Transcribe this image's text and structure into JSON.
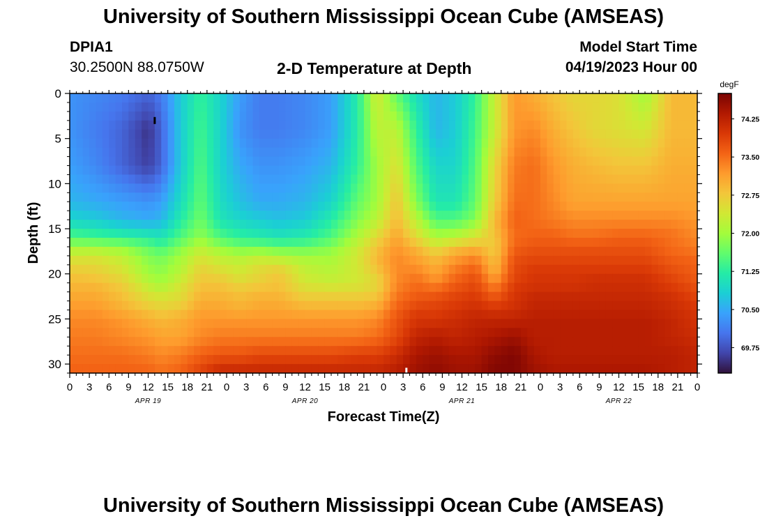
{
  "page": {
    "title_top": "University of Southern Mississippi Ocean Cube (AMSEAS)",
    "title_bottom": "University of Southern Mississippi Ocean Cube (AMSEAS)",
    "station_id": "DPIA1",
    "station_coords": "30.2500N  88.0750W",
    "plot_title": "2-D Temperature at Depth",
    "model_start_label": "Model Start Time",
    "model_start_value": "04/19/2023 Hour 00"
  },
  "colors": {
    "colormap": [
      "#30123b",
      "#4145ab",
      "#4675ed",
      "#39a2fc",
      "#1bcfd4",
      "#24eca6",
      "#61fc6c",
      "#a4fc3b",
      "#d1e834",
      "#f3c63a",
      "#fe9b2d",
      "#f36315",
      "#d93806",
      "#b11901",
      "#7a0403"
    ]
  },
  "chart_data": {
    "type": "heatmap",
    "title": "2-D Temperature at Depth",
    "xlabel": "Forecast Time(Z)",
    "ylabel": "Depth (ft)",
    "x_ticks": [
      "0",
      "3",
      "6",
      "9",
      "12",
      "15",
      "18",
      "21",
      "0",
      "3",
      "6",
      "9",
      "12",
      "15",
      "18",
      "21",
      "0",
      "3",
      "6",
      "9",
      "12",
      "15",
      "18",
      "21",
      "0",
      "3",
      "6",
      "9",
      "12",
      "15",
      "18",
      "21",
      "0"
    ],
    "x_range_hours": [
      0,
      96
    ],
    "date_labels": [
      {
        "label": "APR 19",
        "hour": 12
      },
      {
        "label": "APR 20",
        "hour": 36
      },
      {
        "label": "APR 21",
        "hour": 60
      },
      {
        "label": "APR 22",
        "hour": 84
      }
    ],
    "y_ticks": [
      0,
      5,
      10,
      15,
      20,
      25,
      30
    ],
    "y_range_ft": [
      0,
      31
    ],
    "colorbar": {
      "unit": "degF",
      "range": [
        69.25,
        74.75
      ],
      "tick_values": [
        69.75,
        70.5,
        71.25,
        72.0,
        72.75,
        73.5,
        74.25
      ],
      "tick_labels": [
        "69.75",
        "70.50",
        "71.25",
        "72.00",
        "72.75",
        "73.50",
        "74.25"
      ]
    },
    "depth_levels_ft": [
      0,
      4,
      8,
      12,
      14,
      16,
      17,
      18,
      19,
      20,
      21,
      22,
      23,
      24,
      25,
      27,
      29,
      31
    ],
    "time_hours": [
      0,
      4,
      8,
      12,
      14,
      17,
      20,
      23,
      26,
      29,
      32,
      36,
      40,
      44,
      47,
      50,
      53,
      56,
      59,
      62,
      65,
      68,
      71,
      74,
      77,
      80,
      84,
      88,
      92,
      96
    ],
    "temperature_degF": [
      [
        70.3,
        70.2,
        70.1,
        69.9,
        70.1,
        70.8,
        71.3,
        70.9,
        70.4,
        70.1,
        70.1,
        70.2,
        70.4,
        71.2,
        72.4,
        71.6,
        71.0,
        70.6,
        70.8,
        71.3,
        72.3,
        73.2,
        73.0,
        72.8,
        72.6,
        72.6,
        72.5,
        72.0,
        72.9,
        72.9
      ],
      [
        70.3,
        70.1,
        69.9,
        69.5,
        69.9,
        70.8,
        71.4,
        70.9,
        70.3,
        70.1,
        70.1,
        70.2,
        70.4,
        71.2,
        72.2,
        72.2,
        71.3,
        70.6,
        70.8,
        71.4,
        72.3,
        73.2,
        73.3,
        73.0,
        72.8,
        72.6,
        72.5,
        72.4,
        72.9,
        72.9
      ],
      [
        70.4,
        70.2,
        69.9,
        69.6,
        69.9,
        70.8,
        71.5,
        70.9,
        70.5,
        70.3,
        70.3,
        70.4,
        70.6,
        71.3,
        72.0,
        72.5,
        71.5,
        70.9,
        70.9,
        71.5,
        72.6,
        73.4,
        73.5,
        73.2,
        73.0,
        72.9,
        72.8,
        72.8,
        73.0,
        73.0
      ],
      [
        70.6,
        70.5,
        70.4,
        70.3,
        70.4,
        71.0,
        71.6,
        71.0,
        70.7,
        70.5,
        70.5,
        70.6,
        70.9,
        71.6,
        72.0,
        72.8,
        71.8,
        71.1,
        71.1,
        71.6,
        72.7,
        73.5,
        73.5,
        73.3,
        73.1,
        73.1,
        73.1,
        73.1,
        73.1,
        73.1
      ],
      [
        70.9,
        70.8,
        70.6,
        70.5,
        70.6,
        71.2,
        71.7,
        71.1,
        70.9,
        70.8,
        70.7,
        70.8,
        71.2,
        71.8,
        72.2,
        72.9,
        72.2,
        71.5,
        71.5,
        71.8,
        72.9,
        73.6,
        73.5,
        73.4,
        73.3,
        73.3,
        73.3,
        73.3,
        73.3,
        73.2
      ],
      [
        71.5,
        71.4,
        71.3,
        71.2,
        71.1,
        71.5,
        71.9,
        71.5,
        71.3,
        71.2,
        71.1,
        71.2,
        71.5,
        72.1,
        72.6,
        73.1,
        72.6,
        72.1,
        72.2,
        72.5,
        72.8,
        73.5,
        73.6,
        73.6,
        73.5,
        73.5,
        73.6,
        73.6,
        73.5,
        73.3
      ],
      [
        72.0,
        72.0,
        71.9,
        71.6,
        71.4,
        71.8,
        72.2,
        71.9,
        71.7,
        71.7,
        71.6,
        71.6,
        71.8,
        72.3,
        72.8,
        73.2,
        72.9,
        72.5,
        72.8,
        72.9,
        72.7,
        73.6,
        73.7,
        73.7,
        73.7,
        73.7,
        73.7,
        73.7,
        73.5,
        73.4
      ],
      [
        72.4,
        72.4,
        72.2,
        71.8,
        71.7,
        72.0,
        72.4,
        72.2,
        72.1,
        72.2,
        72.1,
        72.0,
        72.0,
        72.4,
        72.9,
        73.3,
        73.1,
        72.8,
        73.1,
        73.3,
        72.8,
        73.7,
        73.8,
        73.8,
        73.8,
        73.8,
        73.8,
        73.8,
        73.6,
        73.5
      ],
      [
        72.6,
        72.6,
        72.4,
        71.9,
        71.8,
        72.1,
        72.6,
        72.4,
        72.3,
        72.5,
        72.5,
        72.2,
        72.1,
        72.4,
        72.9,
        73.3,
        73.2,
        73.0,
        73.3,
        73.5,
        72.9,
        73.8,
        73.9,
        73.9,
        73.9,
        73.9,
        73.9,
        73.9,
        73.7,
        73.6
      ],
      [
        72.8,
        72.7,
        72.5,
        72.0,
        71.9,
        72.2,
        72.7,
        72.6,
        72.4,
        72.6,
        72.8,
        72.3,
        72.2,
        72.4,
        72.7,
        73.3,
        73.4,
        73.1,
        73.5,
        73.7,
        73.0,
        73.8,
        74.0,
        74.0,
        74.0,
        74.0,
        74.0,
        74.0,
        73.8,
        73.6
      ],
      [
        72.9,
        72.9,
        72.7,
        72.2,
        72.0,
        72.4,
        72.8,
        72.8,
        72.6,
        72.7,
        72.8,
        72.4,
        72.3,
        72.4,
        72.6,
        73.3,
        73.5,
        73.3,
        73.6,
        73.8,
        73.3,
        73.9,
        74.0,
        74.0,
        74.0,
        74.1,
        74.1,
        74.1,
        73.9,
        73.7
      ],
      [
        73.0,
        73.0,
        72.8,
        72.4,
        72.3,
        72.5,
        72.9,
        72.9,
        72.8,
        72.9,
        72.9,
        72.6,
        72.6,
        72.6,
        72.7,
        73.4,
        73.6,
        73.6,
        73.8,
        73.9,
        73.5,
        74.0,
        74.1,
        74.1,
        74.1,
        74.1,
        74.1,
        74.1,
        74.0,
        73.8
      ],
      [
        73.1,
        73.1,
        72.9,
        72.6,
        72.5,
        72.6,
        73.0,
        73.0,
        72.9,
        73.0,
        73.0,
        72.8,
        72.8,
        72.8,
        72.9,
        73.5,
        73.7,
        73.8,
        73.9,
        74.0,
        73.8,
        74.0,
        74.2,
        74.2,
        74.2,
        74.2,
        74.2,
        74.2,
        74.1,
        73.9
      ],
      [
        73.2,
        73.2,
        73.0,
        72.8,
        72.7,
        72.8,
        73.1,
        73.1,
        73.0,
        73.1,
        73.1,
        73.0,
        73.0,
        73.0,
        73.1,
        73.6,
        73.9,
        73.9,
        74.0,
        74.1,
        74.0,
        74.1,
        74.2,
        74.2,
        74.2,
        74.2,
        74.2,
        74.2,
        74.1,
        74.0
      ],
      [
        73.3,
        73.3,
        73.2,
        73.0,
        72.9,
        73.0,
        73.2,
        73.2,
        73.2,
        73.2,
        73.2,
        73.2,
        73.2,
        73.2,
        73.3,
        73.7,
        74.0,
        74.0,
        74.1,
        74.2,
        74.2,
        74.2,
        74.3,
        74.3,
        74.3,
        74.3,
        74.3,
        74.3,
        74.2,
        74.0
      ],
      [
        73.4,
        73.4,
        73.3,
        73.2,
        73.1,
        73.1,
        73.3,
        73.4,
        73.4,
        73.4,
        73.4,
        73.4,
        73.4,
        73.4,
        73.5,
        73.8,
        74.2,
        74.3,
        74.2,
        74.3,
        74.4,
        74.5,
        74.3,
        74.3,
        74.3,
        74.3,
        74.3,
        74.3,
        74.2,
        74.1
      ],
      [
        73.5,
        73.5,
        73.5,
        73.4,
        73.3,
        73.4,
        73.6,
        73.7,
        73.7,
        73.8,
        73.8,
        73.8,
        73.8,
        73.9,
        73.9,
        74.1,
        74.4,
        74.5,
        74.4,
        74.4,
        74.6,
        74.7,
        74.4,
        74.3,
        74.3,
        74.3,
        74.3,
        74.3,
        74.3,
        74.2
      ],
      [
        73.6,
        73.6,
        73.6,
        73.6,
        73.5,
        73.6,
        73.9,
        74.2,
        74.2,
        74.2,
        74.2,
        74.2,
        74.2,
        74.2,
        74.2,
        74.3,
        74.5,
        74.6,
        74.5,
        74.5,
        74.7,
        74.7,
        74.5,
        74.4,
        74.4,
        74.4,
        74.4,
        74.4,
        74.3,
        74.2
      ]
    ],
    "markers": [
      {
        "hour": 13,
        "depth_ft": 3.0,
        "color": "#000000"
      },
      {
        "hour": 51.5,
        "depth_ft": 30.8,
        "color": "#ffffff"
      }
    ]
  },
  "labels": {
    "degF": "degF"
  }
}
